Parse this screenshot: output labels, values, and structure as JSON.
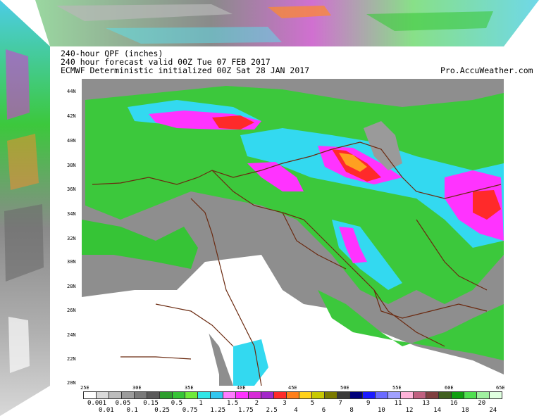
{
  "header": {
    "line1": "240-hour QPF (inches)",
    "line2": "240 hour forecast valid 00Z Tue 07 FEB 2017",
    "line3": "ECMWF Deterministic initialized 00Z Sat 28 JAN 2017",
    "site": "Pro.AccuWeather.com"
  },
  "map": {
    "lat_labels": [
      "44N",
      "42N",
      "40N",
      "38N",
      "36N",
      "34N",
      "32N",
      "30N",
      "28N",
      "26N",
      "24N",
      "22N",
      "20N"
    ],
    "lon_labels": [
      "25E",
      "30E",
      "35E",
      "40E",
      "45E",
      "50E",
      "55E",
      "60E",
      "65E"
    ]
  },
  "colorbar": {
    "labels_upper": [
      "0.001",
      "0.05",
      "0.15",
      "0.5",
      "1",
      "1.5",
      "2",
      "3",
      "5",
      "7",
      "9",
      "11",
      "13",
      "16",
      "20"
    ],
    "labels_lower": [
      "0.01",
      "0.1",
      "0.25",
      "0.75",
      "1.25",
      "1.75",
      "2.5",
      "4",
      "6",
      "8",
      "10",
      "12",
      "14",
      "18",
      "24"
    ],
    "colors": [
      "#ffffff",
      "#d9d9d9",
      "#bdbdbd",
      "#9c9c9c",
      "#7a7a7a",
      "#5a5a5a",
      "#2e9e2e",
      "#36c436",
      "#6eeb3a",
      "#30e6e6",
      "#33c7f0",
      "#ff7dff",
      "#ff33ff",
      "#d62bd6",
      "#a328c9",
      "#ff2a2a",
      "#ff7f1a",
      "#ffd11a",
      "#c8c800",
      "#7a7a00",
      "#3a3a3a",
      "#00007a",
      "#1a1aff",
      "#6a6aff",
      "#a0a0ff",
      "#ffb3d9",
      "#c06080",
      "#804040",
      "#406020",
      "#10a010",
      "#50e050",
      "#a0f0a0",
      "#e0ffe0"
    ]
  },
  "colors": {
    "land_shade": "#8e8e8e",
    "dry": "#ffffff",
    "green": "#3cc83c",
    "cyan": "#33d9f0",
    "magenta": "#ff33ff",
    "red": "#ff2a2a",
    "orange": "#ffa020",
    "border": "#6b2a10"
  }
}
